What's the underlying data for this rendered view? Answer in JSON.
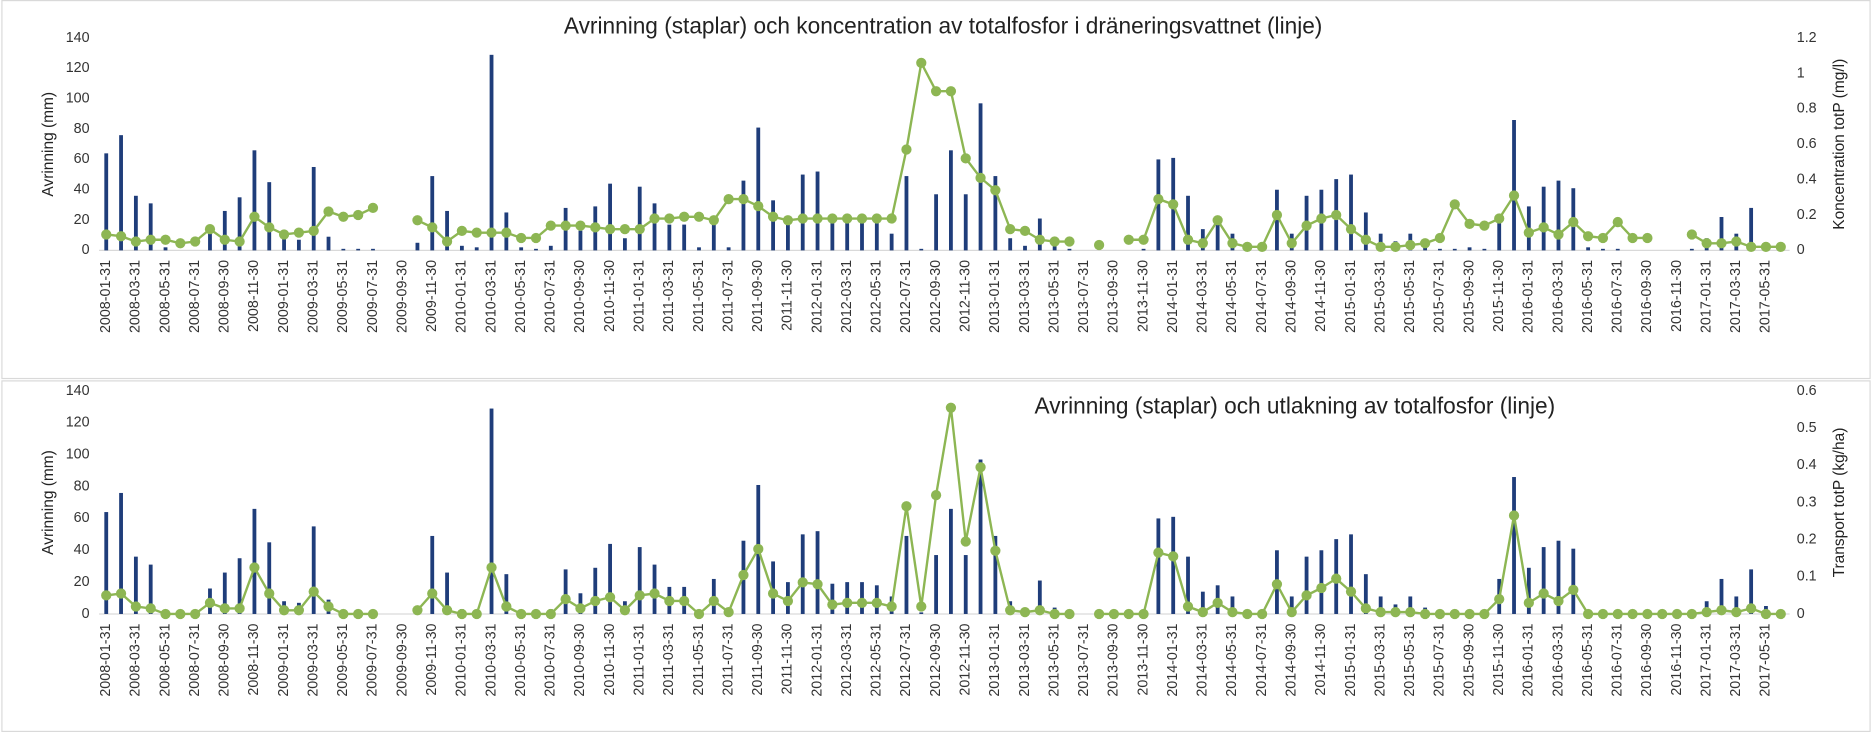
{
  "chart_data": [
    {
      "type": "combo",
      "title": "Avrinning (staplar) och koncentration av totalfosfor i dräneringsvattnet (linje)",
      "y_label": "Avrinning (mm)",
      "y2_label": "Koncentration totP (mg/l)",
      "categories": [
        "2008-01-31",
        null,
        "2008-03-31",
        null,
        "2008-05-31",
        null,
        "2008-07-31",
        null,
        "2008-09-30",
        null,
        "2008-11-30",
        null,
        "2009-01-31",
        null,
        "2009-03-31",
        null,
        "2009-05-31",
        null,
        "2009-07-31",
        null,
        "2009-09-30",
        null,
        "2009-11-30",
        null,
        "2010-01-31",
        null,
        "2010-03-31",
        null,
        "2010-05-31",
        null,
        "2010-07-31",
        null,
        "2010-09-30",
        null,
        "2010-11-30",
        null,
        "2011-01-31",
        null,
        "2011-03-31",
        null,
        "2011-05-31",
        null,
        "2011-07-31",
        null,
        "2011-09-30",
        null,
        "2011-11-30",
        null,
        "2012-01-31",
        null,
        "2012-03-31",
        null,
        "2012-05-31",
        null,
        "2012-07-31",
        null,
        "2012-09-30",
        null,
        "2012-11-30",
        null,
        "2013-01-31",
        null,
        "2013-03-31",
        null,
        "2013-05-31",
        null,
        "2013-07-31",
        null,
        "2013-09-30",
        null,
        "2013-11-30",
        null,
        "2014-01-31",
        null,
        "2014-03-31",
        null,
        "2014-05-31",
        null,
        "2014-07-31",
        null,
        "2014-09-30",
        null,
        "2014-11-30",
        null,
        "2015-01-31",
        null,
        "2015-03-31",
        null,
        "2015-05-31",
        null,
        "2015-07-31",
        null,
        "2015-09-30",
        null,
        "2015-11-30",
        null,
        "2016-01-31",
        null,
        "2016-03-31",
        null,
        "2016-05-31",
        null,
        "2016-07-31",
        null,
        "2016-09-30",
        null,
        "2016-11-30",
        null,
        "2017-01-31",
        null,
        "2017-03-31",
        null,
        "2017-05-31",
        null
      ],
      "series": [
        {
          "type": "bar",
          "color": "#1f3d7a",
          "values": [
            64,
            76,
            36,
            31,
            2,
            0,
            0,
            16,
            26,
            35,
            66,
            45,
            8,
            7,
            55,
            9,
            1,
            1,
            1,
            0,
            0,
            5,
            49,
            26,
            3,
            2,
            129,
            25,
            2,
            1,
            3,
            28,
            13,
            29,
            44,
            8,
            42,
            31,
            17,
            17,
            2,
            22,
            2,
            46,
            81,
            33,
            20,
            50,
            52,
            19,
            20,
            20,
            18,
            11,
            49,
            1,
            37,
            66,
            37,
            97,
            49,
            8,
            3,
            21,
            4,
            1,
            0,
            0,
            0,
            0,
            1,
            60,
            61,
            36,
            14,
            18,
            11,
            1,
            1,
            40,
            11,
            36,
            40,
            47,
            50,
            25,
            11,
            6,
            11,
            4,
            1,
            1,
            2,
            1,
            22,
            86,
            29,
            42,
            46,
            41,
            2,
            1,
            1,
            0,
            0,
            0,
            0,
            1,
            8,
            22,
            11,
            28,
            5,
            1
          ]
        },
        {
          "type": "line",
          "axis": "y2",
          "color": "#8db653",
          "values": [
            0.09,
            0.08,
            0.05,
            0.06,
            0.06,
            0.04,
            0.05,
            0.12,
            0.06,
            0.05,
            0.19,
            0.13,
            0.09,
            0.1,
            0.11,
            0.22,
            0.19,
            0.2,
            0.24,
            null,
            null,
            0.17,
            0.13,
            0.05,
            0.11,
            0.1,
            0.1,
            0.1,
            0.07,
            0.07,
            0.14,
            0.14,
            0.14,
            0.13,
            0.12,
            0.12,
            0.12,
            0.18,
            0.18,
            0.19,
            0.19,
            0.17,
            0.29,
            0.29,
            0.25,
            0.19,
            0.17,
            0.18,
            0.18,
            0.18,
            0.18,
            0.18,
            0.18,
            0.18,
            0.57,
            1.06,
            0.9,
            0.9,
            0.52,
            0.41,
            0.34,
            0.12,
            0.11,
            0.06,
            0.05,
            0.05,
            null,
            0.03,
            null,
            0.06,
            0.06,
            0.29,
            0.26,
            0.06,
            0.04,
            0.17,
            0.04,
            0.02,
            0.02,
            0.2,
            0.04,
            0.14,
            0.18,
            0.2,
            0.12,
            0.06,
            0.02,
            0.02,
            0.03,
            0.04,
            0.07,
            0.26,
            0.15,
            0.14,
            0.18,
            0.31,
            0.1,
            0.13,
            0.09,
            0.16,
            0.08,
            0.07,
            0.16,
            0.07,
            0.07,
            null,
            null,
            0.09,
            0.04,
            0.04,
            0.05,
            0.02,
            0.02,
            0.02
          ]
        }
      ],
      "ylim": [
        0,
        140
      ],
      "yticks": [
        0,
        20,
        40,
        60,
        80,
        100,
        120,
        140
      ],
      "y2lim": [
        0,
        1.2
      ],
      "y2ticks": [
        0,
        0.2,
        0.4,
        0.6,
        0.8,
        1,
        1.2
      ]
    },
    {
      "type": "combo",
      "title": "Avrinning (staplar) och utlakning av totalfosfor (linje)",
      "y_label": "Avrinning (mm)",
      "y2_label": "Transport totP (kg/ha)",
      "categories": [
        "2008-01-31",
        null,
        "2008-03-31",
        null,
        "2008-05-31",
        null,
        "2008-07-31",
        null,
        "2008-09-30",
        null,
        "2008-11-30",
        null,
        "2009-01-31",
        null,
        "2009-03-31",
        null,
        "2009-05-31",
        null,
        "2009-07-31",
        null,
        "2009-09-30",
        null,
        "2009-11-30",
        null,
        "2010-01-31",
        null,
        "2010-03-31",
        null,
        "2010-05-31",
        null,
        "2010-07-31",
        null,
        "2010-09-30",
        null,
        "2010-11-30",
        null,
        "2011-01-31",
        null,
        "2011-03-31",
        null,
        "2011-05-31",
        null,
        "2011-07-31",
        null,
        "2011-09-30",
        null,
        "2011-11-30",
        null,
        "2012-01-31",
        null,
        "2012-03-31",
        null,
        "2012-05-31",
        null,
        "2012-07-31",
        null,
        "2012-09-30",
        null,
        "2012-11-30",
        null,
        "2013-01-31",
        null,
        "2013-03-31",
        null,
        "2013-05-31",
        null,
        "2013-07-31",
        null,
        "2013-09-30",
        null,
        "2013-11-30",
        null,
        "2014-01-31",
        null,
        "2014-03-31",
        null,
        "2014-05-31",
        null,
        "2014-07-31",
        null,
        "2014-09-30",
        null,
        "2014-11-30",
        null,
        "2015-01-31",
        null,
        "2015-03-31",
        null,
        "2015-05-31",
        null,
        "2015-07-31",
        null,
        "2015-09-30",
        null,
        "2015-11-30",
        null,
        "2016-01-31",
        null,
        "2016-03-31",
        null,
        "2016-05-31",
        null,
        "2016-07-31",
        null,
        "2016-09-30",
        null,
        "2016-11-30",
        null,
        "2017-01-31",
        null,
        "2017-03-31",
        null,
        "2017-05-31",
        null
      ],
      "series": [
        {
          "type": "bar",
          "color": "#1f3d7a",
          "values": [
            64,
            76,
            36,
            31,
            2,
            0,
            0,
            16,
            26,
            35,
            66,
            45,
            8,
            7,
            55,
            9,
            1,
            1,
            1,
            0,
            0,
            5,
            49,
            26,
            3,
            2,
            129,
            25,
            2,
            1,
            3,
            28,
            13,
            29,
            44,
            8,
            42,
            31,
            17,
            17,
            2,
            22,
            2,
            46,
            81,
            33,
            20,
            50,
            52,
            19,
            20,
            20,
            18,
            11,
            49,
            1,
            37,
            66,
            37,
            97,
            49,
            8,
            3,
            21,
            4,
            1,
            0,
            0,
            0,
            0,
            1,
            60,
            61,
            36,
            14,
            18,
            11,
            1,
            1,
            40,
            11,
            36,
            40,
            47,
            50,
            25,
            11,
            6,
            11,
            4,
            1,
            1,
            2,
            1,
            22,
            86,
            29,
            42,
            46,
            41,
            2,
            1,
            1,
            0,
            0,
            0,
            0,
            1,
            8,
            22,
            11,
            28,
            5,
            1
          ]
        },
        {
          "type": "line",
          "axis": "y2",
          "color": "#8db653",
          "values": [
            0.05,
            0.055,
            0.02,
            0.015,
            0,
            0,
            0,
            0.03,
            0.015,
            0.015,
            0.125,
            0.055,
            0.01,
            0.01,
            0.06,
            0.02,
            0,
            0,
            0,
            null,
            null,
            0.01,
            0.055,
            0.01,
            0,
            0,
            0.125,
            0.02,
            0,
            0,
            0,
            0.04,
            0.015,
            0.035,
            0.045,
            0.01,
            0.05,
            0.055,
            0.035,
            0.035,
            0,
            0.035,
            0.005,
            0.105,
            0.175,
            0.055,
            0.035,
            0.085,
            0.08,
            0.025,
            0.03,
            0.03,
            0.03,
            0.02,
            0.29,
            0.02,
            0.32,
            0.555,
            0.195,
            0.395,
            0.17,
            0.01,
            0.005,
            0.01,
            0,
            0,
            null,
            0,
            0,
            0,
            0,
            0.165,
            0.155,
            0.02,
            0.005,
            0.03,
            0.005,
            0,
            0,
            0.08,
            0.005,
            0.05,
            0.07,
            0.095,
            0.06,
            0.015,
            0.005,
            0.005,
            0.005,
            0,
            0,
            0,
            0,
            0,
            0.04,
            0.265,
            0.03,
            0.055,
            0.035,
            0.065,
            0,
            0,
            0,
            0,
            0,
            0,
            0,
            0,
            0.005,
            0.01,
            0.005,
            0.015,
            0,
            0
          ]
        }
      ],
      "ylim": [
        0,
        140
      ],
      "yticks": [
        0,
        20,
        40,
        60,
        80,
        100,
        120,
        140
      ],
      "y2lim": [
        0,
        0.6
      ],
      "y2ticks": [
        0,
        0.1,
        0.2,
        0.3,
        0.4,
        0.5,
        0.6
      ]
    }
  ]
}
